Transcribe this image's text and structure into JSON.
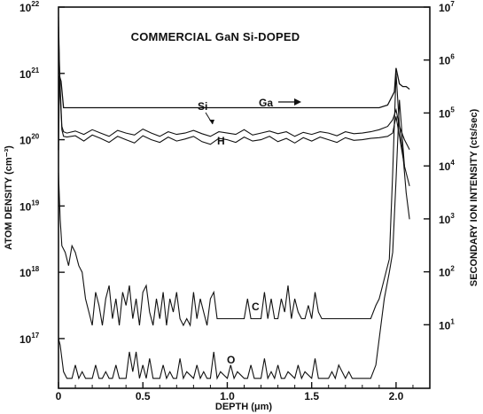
{
  "chart_data": {
    "type": "line",
    "title": "COMMERCIAL GaN Si-DOPED",
    "xlabel": "DEPTH (μm)",
    "ylabel": "ATOM DENSITY (cm⁻³)",
    "ylabel_right": "SECONDARY ION INTENSITY (cts/sec)",
    "xlim": [
      0,
      2.2
    ],
    "ylim_log10": [
      16.25,
      22
    ],
    "y2lim_log10": [
      -0.2,
      7
    ],
    "x_ticks": [
      {
        "value": 0,
        "label": "0"
      },
      {
        "value": 0.5,
        "label": "0.5"
      },
      {
        "value": 1.0,
        "label": "1.0"
      },
      {
        "value": 1.5,
        "label": "1.5"
      },
      {
        "value": 2.0,
        "label": "2.0"
      }
    ],
    "y_ticks_left": [
      {
        "exp": 22,
        "base": "10",
        "sup": "22"
      },
      {
        "exp": 21,
        "base": "10",
        "sup": "21"
      },
      {
        "exp": 20,
        "base": "10",
        "sup": "20"
      },
      {
        "exp": 19,
        "base": "10",
        "sup": "19"
      },
      {
        "exp": 18,
        "base": "10",
        "sup": "18"
      },
      {
        "exp": 17,
        "base": "10",
        "sup": "17"
      }
    ],
    "y_ticks_right": [
      {
        "exp": 7,
        "base": "10",
        "sup": "7"
      },
      {
        "exp": 6,
        "base": "10",
        "sup": "6"
      },
      {
        "exp": 5,
        "base": "10",
        "sup": "5"
      },
      {
        "exp": 4,
        "base": "10",
        "sup": "4"
      },
      {
        "exp": 3,
        "base": "10",
        "sup": "3"
      },
      {
        "exp": 2,
        "base": "10",
        "sup": "2"
      },
      {
        "exp": 1,
        "base": "10",
        "sup": "1"
      }
    ],
    "series": [
      {
        "name": "Ga",
        "axis": "right",
        "x": [
          0,
          0.005,
          0.015,
          0.03,
          1.0,
          1.9,
          1.95,
          1.99,
          2.0,
          2.02,
          2.04,
          2.06,
          2.08
        ],
        "log_y": [
          4.3,
          5.7,
          5.6,
          5.1,
          5.1,
          5.1,
          5.15,
          5.4,
          5.85,
          5.55,
          5.5,
          5.5,
          5.45
        ]
      },
      {
        "name": "Si",
        "axis": "left",
        "x": [
          0,
          0.005,
          0.01,
          0.02,
          0.03,
          0.05,
          0.1,
          0.15,
          0.2,
          0.25,
          0.3,
          0.35,
          0.4,
          0.45,
          0.5,
          0.55,
          0.6,
          0.65,
          0.7,
          0.75,
          0.8,
          0.85,
          0.9,
          0.95,
          1.0,
          1.05,
          1.1,
          1.15,
          1.2,
          1.25,
          1.3,
          1.35,
          1.4,
          1.45,
          1.5,
          1.55,
          1.6,
          1.65,
          1.7,
          1.75,
          1.8,
          1.85,
          1.9,
          1.95,
          1.98,
          2.0,
          2.02,
          2.05,
          2.08
        ],
        "log_y": [
          21.85,
          21.2,
          20.8,
          20.2,
          20.12,
          20.1,
          20.13,
          20.08,
          20.15,
          20.1,
          20.05,
          20.14,
          20.1,
          20.07,
          20.16,
          20.1,
          20.05,
          20.12,
          20.08,
          20.1,
          20.14,
          20.09,
          20.05,
          20.12,
          20.1,
          20.08,
          20.15,
          20.07,
          20.1,
          20.13,
          20.09,
          20.12,
          20.05,
          20.11,
          20.08,
          20.12,
          20.1,
          20.06,
          20.12,
          20.09,
          20.1,
          20.12,
          20.15,
          20.2,
          20.3,
          20.45,
          20.2,
          20.0,
          19.85
        ]
      },
      {
        "name": "H",
        "axis": "left",
        "x": [
          0,
          0.005,
          0.01,
          0.02,
          0.03,
          0.05,
          0.1,
          0.15,
          0.2,
          0.25,
          0.3,
          0.35,
          0.4,
          0.45,
          0.5,
          0.55,
          0.6,
          0.65,
          0.7,
          0.75,
          0.8,
          0.85,
          0.9,
          0.95,
          1.0,
          1.05,
          1.1,
          1.15,
          1.2,
          1.25,
          1.3,
          1.35,
          1.4,
          1.45,
          1.5,
          1.55,
          1.6,
          1.65,
          1.7,
          1.75,
          1.8,
          1.85,
          1.9,
          1.95,
          1.98,
          2.0,
          2.02,
          2.05,
          2.08
        ],
        "log_y": [
          21.7,
          21.1,
          20.7,
          20.15,
          20.05,
          20.04,
          20.06,
          19.98,
          20.07,
          20.02,
          19.96,
          20.05,
          20.0,
          19.95,
          20.06,
          20.0,
          19.96,
          20.04,
          19.98,
          20.01,
          20.05,
          19.97,
          19.93,
          20.02,
          20.0,
          19.96,
          20.04,
          19.98,
          20.0,
          20.05,
          19.97,
          20.02,
          19.95,
          20.03,
          19.98,
          20.04,
          20.0,
          19.96,
          20.03,
          19.99,
          20.0,
          20.02,
          20.03,
          20.05,
          20.1,
          20.35,
          20.05,
          19.6,
          19.3
        ]
      },
      {
        "name": "C",
        "axis": "left",
        "x": [
          0,
          0.01,
          0.02,
          0.04,
          0.06,
          0.08,
          0.1,
          0.12,
          0.14,
          0.16,
          0.18,
          0.2,
          0.22,
          0.24,
          0.26,
          0.28,
          0.3,
          0.32,
          0.34,
          0.36,
          0.38,
          0.4,
          0.42,
          0.44,
          0.46,
          0.48,
          0.5,
          0.52,
          0.54,
          0.56,
          0.58,
          0.6,
          0.62,
          0.64,
          0.66,
          0.68,
          0.7,
          0.72,
          0.74,
          0.76,
          0.78,
          0.8,
          0.82,
          0.84,
          0.86,
          0.88,
          0.9,
          0.92,
          0.94,
          0.96,
          1.0,
          1.05,
          1.1,
          1.12,
          1.14,
          1.16,
          1.2,
          1.22,
          1.24,
          1.26,
          1.28,
          1.3,
          1.32,
          1.34,
          1.36,
          1.38,
          1.4,
          1.42,
          1.44,
          1.46,
          1.48,
          1.5,
          1.52,
          1.54,
          1.56,
          1.6,
          1.65,
          1.7,
          1.75,
          1.8,
          1.85,
          1.88,
          1.9,
          1.92,
          1.94,
          1.96,
          1.98,
          2.0,
          2.02,
          2.04,
          2.06,
          2.08
        ],
        "log_y": [
          19.5,
          18.8,
          18.4,
          18.3,
          18.1,
          18.4,
          18.3,
          18.1,
          18.0,
          17.6,
          17.4,
          17.2,
          17.7,
          17.5,
          17.2,
          17.6,
          17.8,
          17.3,
          17.6,
          17.2,
          17.7,
          17.5,
          17.8,
          17.3,
          17.6,
          17.2,
          17.7,
          17.8,
          17.4,
          17.2,
          17.6,
          17.3,
          17.7,
          17.2,
          17.6,
          17.4,
          17.7,
          17.3,
          17.2,
          17.3,
          17.2,
          17.7,
          17.3,
          17.6,
          17.4,
          17.2,
          17.6,
          17.7,
          17.3,
          17.3,
          17.3,
          17.3,
          17.3,
          17.6,
          17.3,
          17.3,
          17.3,
          17.7,
          17.3,
          17.6,
          17.3,
          17.3,
          17.6,
          17.4,
          17.8,
          17.3,
          17.6,
          17.4,
          17.3,
          17.3,
          17.5,
          17.3,
          17.7,
          17.4,
          17.3,
          17.3,
          17.3,
          17.3,
          17.3,
          17.3,
          17.3,
          17.5,
          17.6,
          17.8,
          18.0,
          18.2,
          19.5,
          21.0,
          20.2,
          19.8,
          19.2,
          18.8
        ]
      },
      {
        "name": "O",
        "axis": "left",
        "x": [
          0,
          0.01,
          0.02,
          0.03,
          0.05,
          0.08,
          0.1,
          0.12,
          0.14,
          0.16,
          0.2,
          0.22,
          0.24,
          0.26,
          0.28,
          0.3,
          0.32,
          0.34,
          0.36,
          0.4,
          0.42,
          0.44,
          0.46,
          0.48,
          0.5,
          0.52,
          0.54,
          0.56,
          0.6,
          0.62,
          0.64,
          0.66,
          0.68,
          0.7,
          0.72,
          0.74,
          0.76,
          0.8,
          0.82,
          0.84,
          0.86,
          0.88,
          0.9,
          0.92,
          0.94,
          0.96,
          1.0,
          1.02,
          1.04,
          1.06,
          1.1,
          1.12,
          1.14,
          1.16,
          1.2,
          1.22,
          1.24,
          1.26,
          1.28,
          1.3,
          1.32,
          1.34,
          1.36,
          1.4,
          1.42,
          1.44,
          1.46,
          1.5,
          1.52,
          1.54,
          1.56,
          1.6,
          1.62,
          1.64,
          1.66,
          1.7,
          1.72,
          1.74,
          1.76,
          1.8,
          1.85,
          1.88,
          1.9,
          1.93,
          1.96,
          1.98,
          2.0,
          2.02,
          2.05
        ],
        "log_y": [
          17.0,
          16.9,
          16.7,
          16.5,
          16.4,
          16.4,
          16.6,
          16.4,
          16.5,
          16.4,
          16.4,
          16.6,
          16.4,
          16.4,
          16.5,
          16.4,
          16.4,
          16.6,
          16.4,
          16.4,
          16.8,
          16.5,
          16.8,
          16.4,
          16.6,
          16.4,
          16.7,
          16.4,
          16.4,
          16.6,
          16.4,
          16.5,
          16.4,
          16.4,
          16.7,
          16.4,
          16.5,
          16.4,
          16.6,
          16.4,
          16.5,
          16.4,
          16.4,
          16.8,
          16.4,
          16.5,
          16.4,
          16.6,
          16.4,
          16.5,
          16.4,
          16.4,
          16.6,
          16.4,
          16.4,
          16.7,
          16.4,
          16.5,
          16.4,
          16.6,
          16.4,
          16.4,
          16.5,
          16.4,
          16.6,
          16.4,
          16.5,
          16.4,
          16.7,
          16.4,
          16.4,
          16.4,
          16.5,
          16.4,
          16.6,
          16.4,
          16.5,
          16.4,
          16.4,
          16.4,
          16.4,
          16.6,
          17.0,
          17.6,
          18.0,
          18.3,
          19.4,
          20.6,
          19.6
        ]
      }
    ],
    "labels": {
      "ga": "Ga",
      "si": "Si",
      "h": "H",
      "c": "C",
      "o": "O"
    },
    "grid": false,
    "legend": "none"
  }
}
